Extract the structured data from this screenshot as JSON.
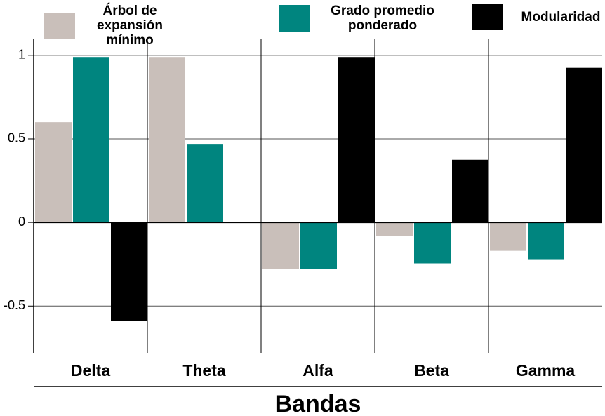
{
  "chart_data": {
    "type": "bar",
    "x_label": "Bandas",
    "categories": [
      "Delta",
      "Theta",
      "Alfa",
      "Beta",
      "Gamma"
    ],
    "series": [
      {
        "name": "Árbol de expansión mínimo",
        "color": "#c9bfba",
        "values": [
          0.6,
          0.99,
          -0.28,
          -0.08,
          -0.17
        ]
      },
      {
        "name": "Grado promedio ponderado",
        "color": "#00857f",
        "values": [
          0.99,
          0.47,
          -0.28,
          -0.245,
          -0.22
        ]
      },
      {
        "name": "Modularidad",
        "color": "#000000",
        "values": [
          -0.59,
          0,
          0.99,
          0.375,
          0.925
        ]
      }
    ],
    "ylim": [
      -0.78,
      1.1
    ],
    "yticks": [
      -0.5,
      0,
      0.5,
      1
    ],
    "grid": true
  }
}
